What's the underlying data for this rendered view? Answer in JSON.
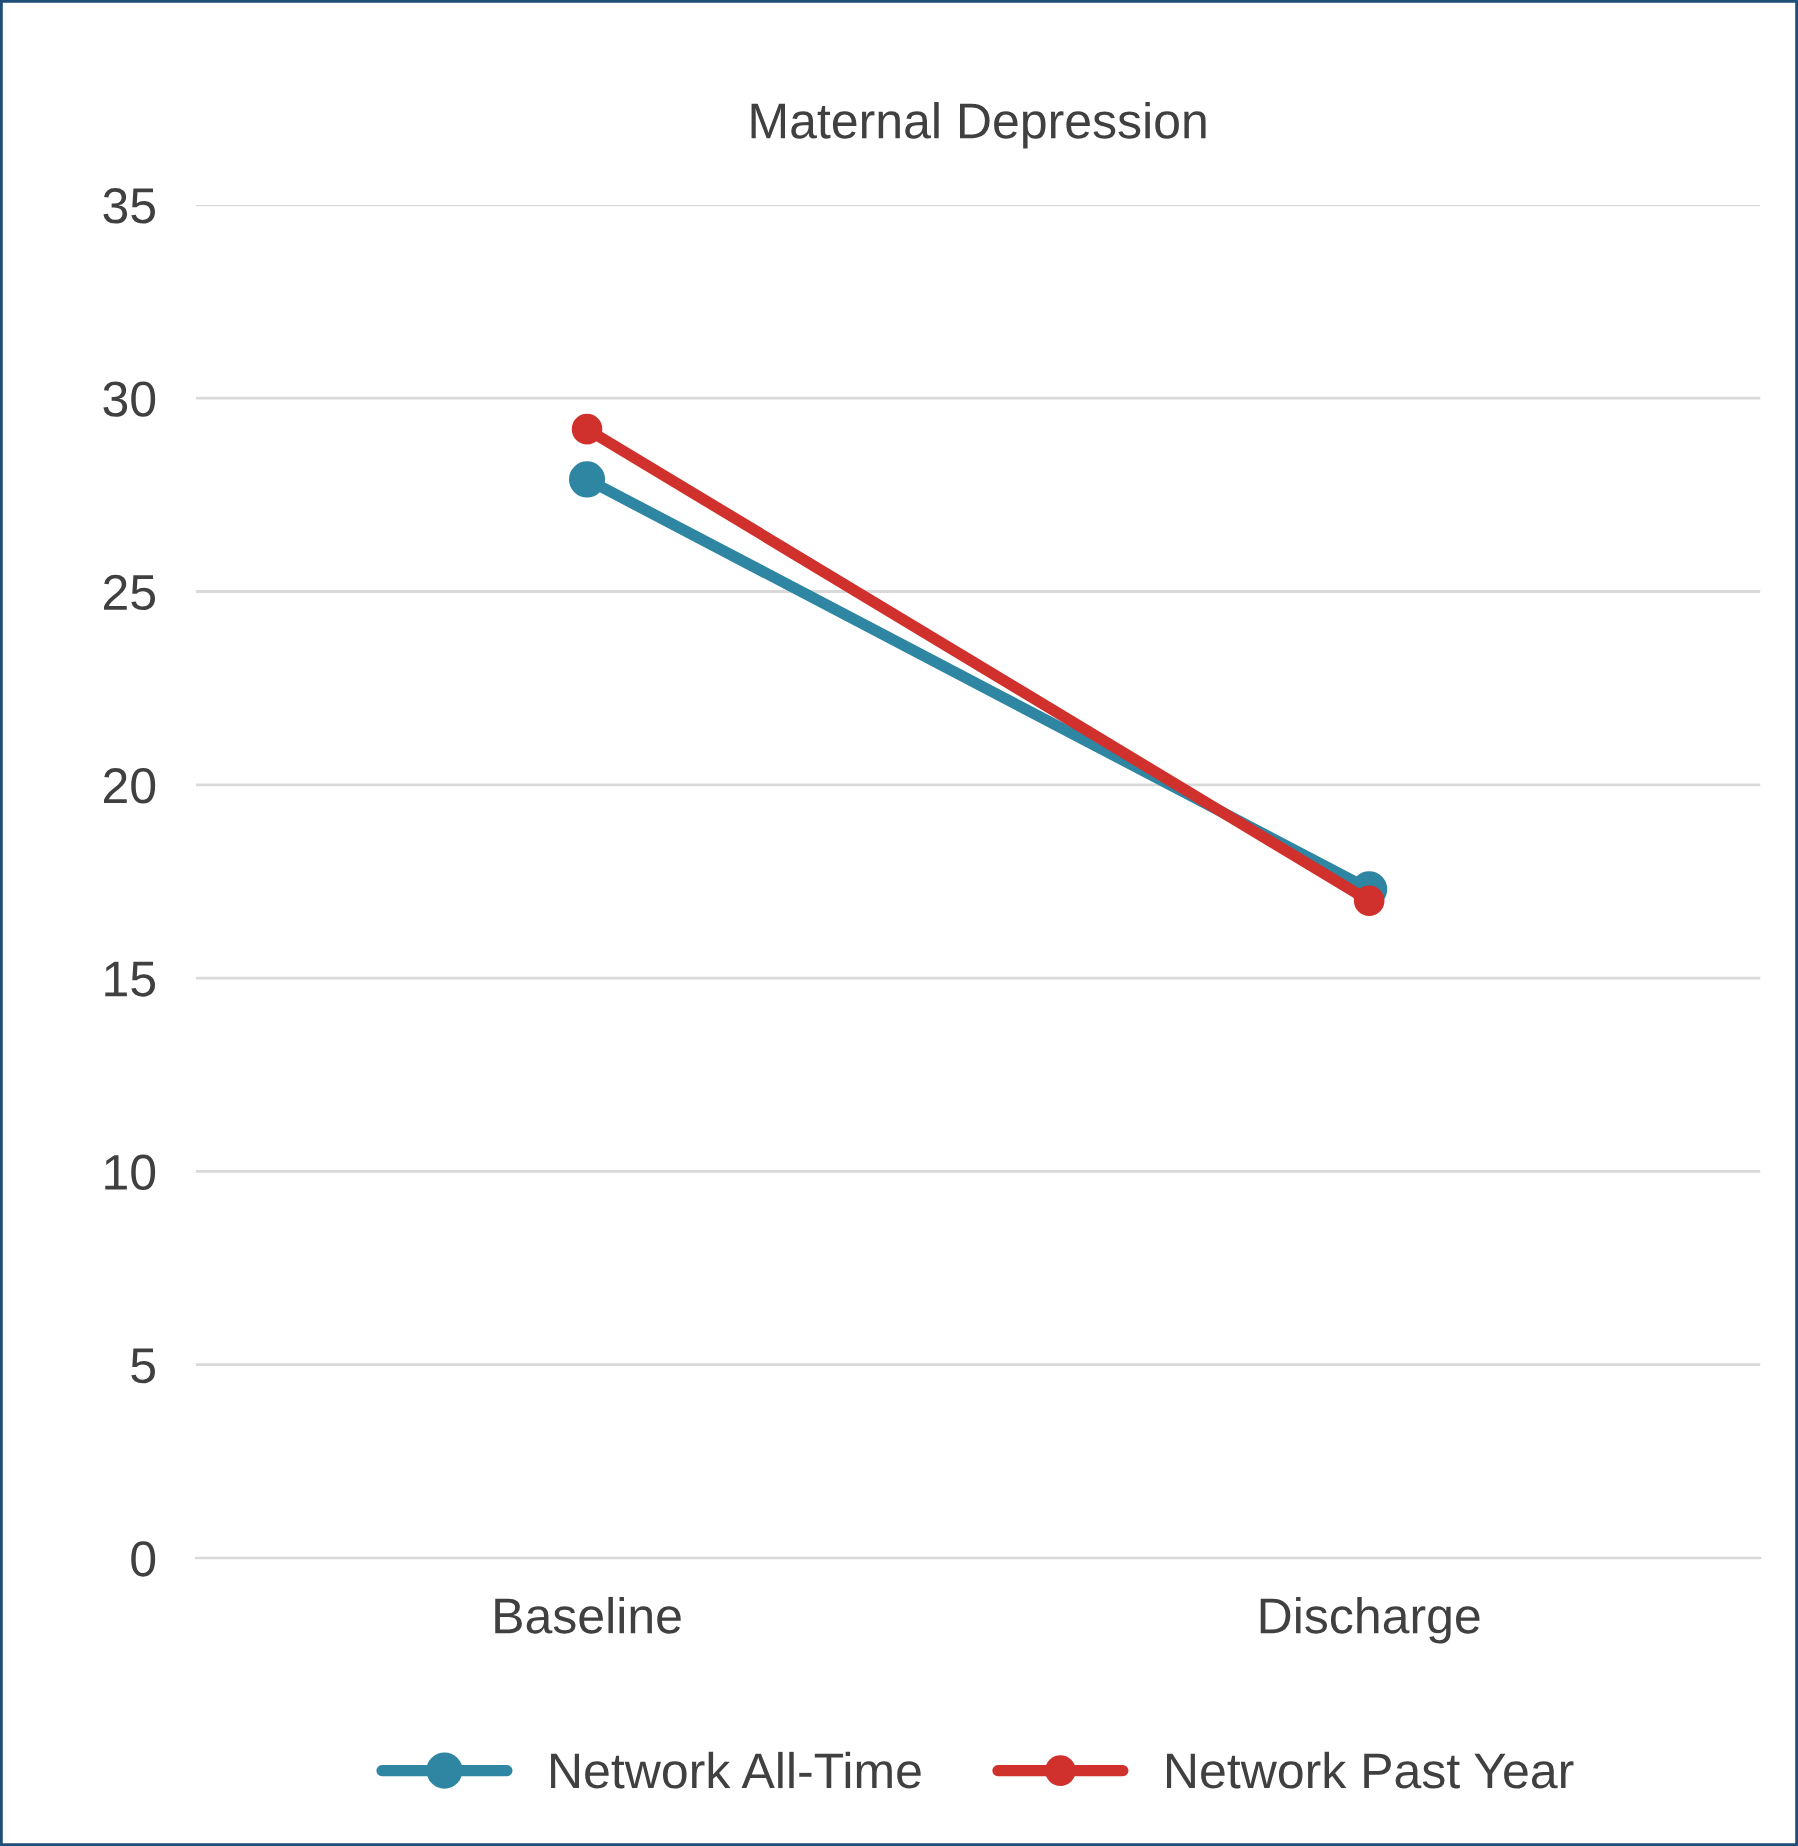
{
  "chart_data": {
    "type": "line",
    "title": "Maternal Depression",
    "categories": [
      "Baseline",
      "Discharge"
    ],
    "series": [
      {
        "name": "Network All-Time",
        "color": "#2e86a3",
        "values": [
          27.9,
          17.3
        ]
      },
      {
        "name": "Network Past Year",
        "color": "#d0312d",
        "values": [
          29.2,
          17.0
        ]
      }
    ],
    "ylim": [
      0,
      35
    ],
    "yticks": [
      0,
      5,
      10,
      15,
      20,
      25,
      30,
      35
    ],
    "grid": "y",
    "legend": "bottom",
    "marker": "circle",
    "line_style": "solid"
  }
}
